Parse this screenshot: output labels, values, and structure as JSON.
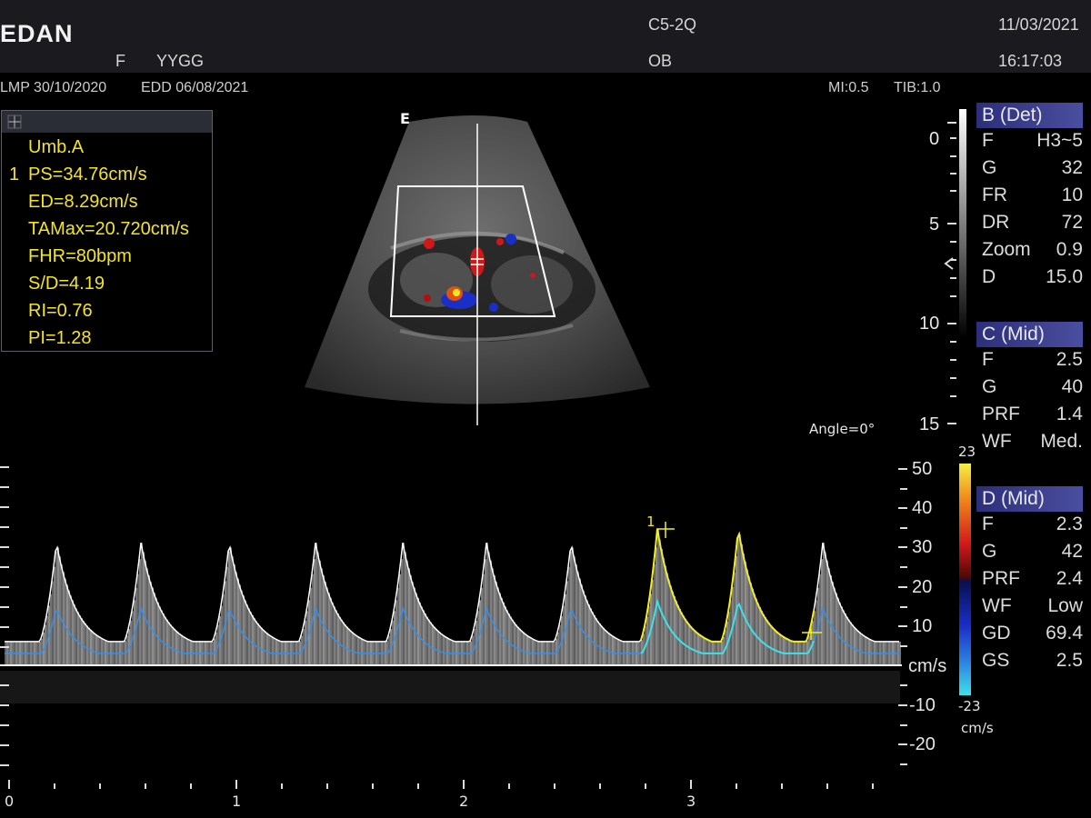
{
  "header": {
    "brand": "EDAN",
    "patient_sex": "F",
    "patient_name": "YYGG",
    "probe": "C5-2Q",
    "exam": "OB",
    "date": "11/03/2021",
    "time": "16:17:03"
  },
  "info": {
    "lmp": "LMP 30/10/2020",
    "edd": "EDD 06/08/2021",
    "mi": "MI:0.5",
    "tib": "TIB:1.0",
    "orientation_marker": "E",
    "angle": "Angle=0°"
  },
  "measurements": {
    "index": "1",
    "lines": [
      "Umb.A",
      "PS=34.76cm/s",
      "ED=8.29cm/s",
      "TAMax=20.720cm/s",
      "FHR=80bpm",
      "S/D=4.19",
      "RI=0.76",
      "PI=1.28"
    ]
  },
  "depth_scale": {
    "labels": [
      "0",
      "5",
      "10",
      "15"
    ]
  },
  "panels": {
    "b": {
      "title": "B (Det)",
      "rows": [
        {
          "label": "F",
          "value": "H3~5"
        },
        {
          "label": "G",
          "value": "32"
        },
        {
          "label": "FR",
          "value": "10"
        },
        {
          "label": "DR",
          "value": "72"
        },
        {
          "label": "Zoom",
          "value": "0.9"
        },
        {
          "label": "D",
          "value": "15.0"
        }
      ]
    },
    "c": {
      "title": "C (Mid)",
      "rows": [
        {
          "label": "F",
          "value": "2.5"
        },
        {
          "label": "G",
          "value": "40"
        },
        {
          "label": "PRF",
          "value": "1.4"
        },
        {
          "label": "WF",
          "value": "Med."
        }
      ]
    },
    "d": {
      "title": "D (Mid)",
      "rows": [
        {
          "label": "F",
          "value": "2.3"
        },
        {
          "label": "G",
          "value": "42"
        },
        {
          "label": "PRF",
          "value": "2.4"
        },
        {
          "label": "WF",
          "value": "Low"
        },
        {
          "label": "GD",
          "value": "69.4"
        },
        {
          "label": "GS",
          "value": "2.5"
        }
      ]
    }
  },
  "color_bar": {
    "max": "23",
    "min": "-23",
    "unit": "cm/s"
  },
  "doppler": {
    "velocity_labels": [
      "50",
      "40",
      "30",
      "20",
      "10",
      "cm/s",
      "-10",
      "-20"
    ],
    "time_labels": [
      "0",
      "1",
      "2",
      "3"
    ],
    "cursor_label": "1",
    "colors": {
      "trace": "#ffffff",
      "mean": "#3a8ee6",
      "selected_peak": "#f2ec2a",
      "selected_mean": "#3fe0ea",
      "text_yellow": "#f3e51f"
    }
  }
}
